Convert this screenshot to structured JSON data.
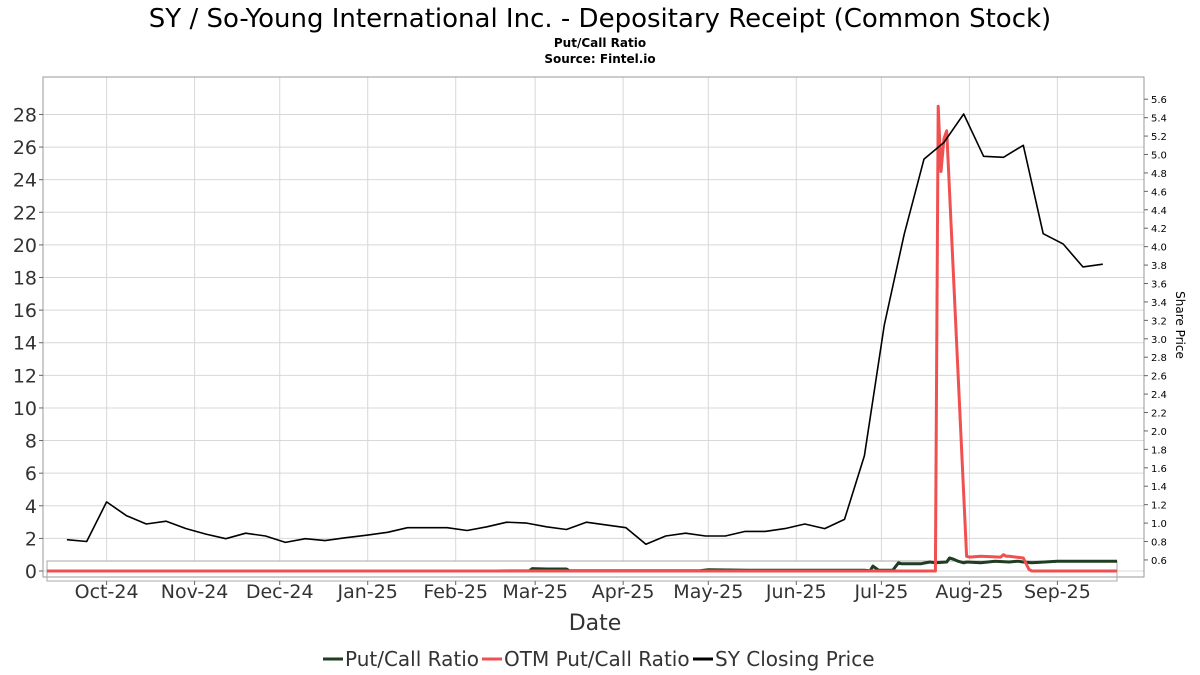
{
  "chart_data": {
    "type": "line",
    "title": "SY / So-Young International Inc. - Depositary Receipt (Common Stock)",
    "subtitle": "Put/Call Ratio",
    "source": "Source: Fintel.io",
    "xlabel": "Date",
    "ylabel": "",
    "ylabel_right": "Share Price",
    "x_range": [
      "2024-09-10",
      "2025-09-22"
    ],
    "ylim": [
      0,
      29.5
    ],
    "ylim_right": [
      0.48,
      5.7
    ],
    "x_ticks": [
      {
        "label": "Oct-24",
        "date": "2024-10-01"
      },
      {
        "label": "Nov-24",
        "date": "2024-11-01"
      },
      {
        "label": "Dec-24",
        "date": "2024-12-01"
      },
      {
        "label": "Jan-25",
        "date": "2025-01-01"
      },
      {
        "label": "Feb-25",
        "date": "2025-02-01"
      },
      {
        "label": "Mar-25",
        "date": "2025-03-01"
      },
      {
        "label": "Apr-25",
        "date": "2025-04-01"
      },
      {
        "label": "May-25",
        "date": "2025-05-01"
      },
      {
        "label": "Jun-25",
        "date": "2025-06-01"
      },
      {
        "label": "Jul-25",
        "date": "2025-07-01"
      },
      {
        "label": "Aug-25",
        "date": "2025-08-01"
      },
      {
        "label": "Sep-25",
        "date": "2025-09-01"
      }
    ],
    "y_ticks": [
      "0",
      "2",
      "4",
      "6",
      "8",
      "10",
      "12",
      "14",
      "16",
      "18",
      "20",
      "22",
      "24",
      "26",
      "28"
    ],
    "y_ticks_right": [
      "0.6",
      "0.8",
      "1.0",
      "1.2",
      "1.4",
      "1.6",
      "1.8",
      "2.0",
      "2.2",
      "2.4",
      "2.6",
      "2.8",
      "3.0",
      "3.2",
      "3.4",
      "3.6",
      "3.8",
      "4.0",
      "4.2",
      "4.4",
      "4.6",
      "4.8",
      "5.0",
      "5.2",
      "5.4",
      "5.6"
    ],
    "grid": true,
    "legend_position": "bottom",
    "series": [
      {
        "name": "Put/Call Ratio",
        "color": "#1e3d22",
        "axis": "left",
        "x": [
          "2024-09-10",
          "2024-10-15",
          "2024-11-15",
          "2024-12-15",
          "2025-01-15",
          "2025-02-15",
          "2025-02-27",
          "2025-02-28",
          "2025-03-05",
          "2025-03-12",
          "2025-03-13",
          "2025-04-15",
          "2025-04-28",
          "2025-05-01",
          "2025-05-15",
          "2025-06-15",
          "2025-06-25",
          "2025-06-27",
          "2025-06-28",
          "2025-06-30",
          "2025-07-05",
          "2025-07-07",
          "2025-07-08",
          "2025-07-15",
          "2025-07-18",
          "2025-07-20",
          "2025-07-24",
          "2025-07-25",
          "2025-07-26",
          "2025-07-28",
          "2025-07-30",
          "2025-07-31",
          "2025-08-05",
          "2025-08-10",
          "2025-08-15",
          "2025-08-18",
          "2025-08-20",
          "2025-08-23",
          "2025-09-01",
          "2025-09-10",
          "2025-09-15",
          "2025-09-18",
          "2025-09-22"
        ],
        "values": [
          0.0,
          0.0,
          0.0,
          0.0,
          0.0,
          0.0,
          0.02,
          0.15,
          0.12,
          0.12,
          0.02,
          0.02,
          0.02,
          0.08,
          0.05,
          0.05,
          0.05,
          0.01,
          0.3,
          0.05,
          0.05,
          0.5,
          0.45,
          0.45,
          0.55,
          0.5,
          0.55,
          0.8,
          0.75,
          0.6,
          0.5,
          0.55,
          0.5,
          0.6,
          0.55,
          0.6,
          0.55,
          0.5,
          0.6,
          0.6,
          0.6,
          0.6,
          0.6
        ]
      },
      {
        "name": "OTM Put/Call Ratio",
        "color": "#f05050",
        "axis": "left",
        "x": [
          "2024-09-10",
          "2025-07-20",
          "2025-07-21",
          "2025-07-22",
          "2025-07-23",
          "2025-07-24",
          "2025-07-31",
          "2025-08-01",
          "2025-08-05",
          "2025-08-12",
          "2025-08-13",
          "2025-08-14",
          "2025-08-15",
          "2025-08-20",
          "2025-08-22",
          "2025-08-23",
          "2025-09-22"
        ],
        "values": [
          0.0,
          0.0,
          28.5,
          24.5,
          26.5,
          27.0,
          0.9,
          0.85,
          0.9,
          0.85,
          1.0,
          0.9,
          0.9,
          0.8,
          0.1,
          0.0,
          0.0
        ]
      },
      {
        "name": "SY Closing Price",
        "color": "#000000",
        "axis": "right",
        "x": [
          "2024-09-17",
          "2024-09-24",
          "2024-10-01",
          "2024-10-08",
          "2024-10-15",
          "2024-10-22",
          "2024-10-29",
          "2024-11-05",
          "2024-11-12",
          "2024-11-19",
          "2024-11-26",
          "2024-12-03",
          "2024-12-10",
          "2024-12-17",
          "2024-12-24",
          "2025-01-01",
          "2025-01-08",
          "2025-01-15",
          "2025-01-22",
          "2025-01-29",
          "2025-02-05",
          "2025-02-12",
          "2025-02-19",
          "2025-02-26",
          "2025-03-05",
          "2025-03-12",
          "2025-03-19",
          "2025-03-26",
          "2025-04-02",
          "2025-04-09",
          "2025-04-16",
          "2025-04-23",
          "2025-04-30",
          "2025-05-07",
          "2025-05-14",
          "2025-05-21",
          "2025-05-28",
          "2025-06-04",
          "2025-06-11",
          "2025-06-18",
          "2025-06-25",
          "2025-07-02",
          "2025-07-09",
          "2025-07-16",
          "2025-07-23",
          "2025-07-30",
          "2025-08-06",
          "2025-08-13",
          "2025-08-20",
          "2025-08-27",
          "2025-09-03",
          "2025-09-10",
          "2025-09-17"
        ],
        "values": [
          0.82,
          0.8,
          1.23,
          1.08,
          0.99,
          1.02,
          0.94,
          0.88,
          0.83,
          0.89,
          0.86,
          0.79,
          0.83,
          0.81,
          0.84,
          0.87,
          0.9,
          0.95,
          0.95,
          0.95,
          0.92,
          0.96,
          1.01,
          1.0,
          0.96,
          0.93,
          1.01,
          0.98,
          0.95,
          0.77,
          0.86,
          0.89,
          0.86,
          0.86,
          0.91,
          0.91,
          0.94,
          0.99,
          0.94,
          1.04,
          1.73,
          3.15,
          4.13,
          4.95,
          5.13,
          5.44,
          4.98,
          4.97,
          5.1,
          4.14,
          4.03,
          3.78,
          3.81
        ]
      }
    ]
  }
}
